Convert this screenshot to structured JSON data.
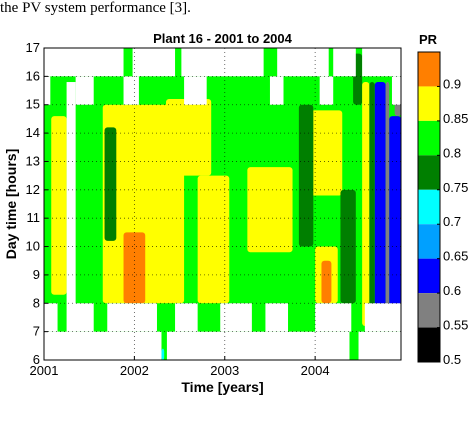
{
  "doc_text_top": "the PV system performance [3].",
  "chart_data": {
    "type": "heatmap",
    "title": "Plant 16 - 2001 to 2004",
    "xlabel": "Time  [years]",
    "ylabel": "Day time  [hours]",
    "xlim": [
      2001.0,
      2004.95
    ],
    "ylim": [
      6,
      17
    ],
    "xticks": [
      "2001",
      "2002",
      "2003",
      "2004"
    ],
    "yticks": [
      "6",
      "7",
      "8",
      "9",
      "10",
      "11",
      "12",
      "13",
      "14",
      "15",
      "16",
      "17"
    ],
    "grid": "dotted",
    "colorbar": {
      "title": "PR",
      "ticks": [
        "0.9",
        "0.85",
        "0.8",
        "0.75",
        "0.7",
        "0.65",
        "0.6",
        "0.55",
        "0.5"
      ],
      "levels": [
        0.5,
        0.55,
        0.6,
        0.65,
        0.7,
        0.75,
        0.8,
        0.85,
        0.9,
        0.95
      ],
      "colors": [
        "#000000",
        "#808080",
        "#0000ff",
        "#00a0ff",
        "#00ffff",
        "#007f00",
        "#00ff00",
        "#ffff00",
        "#ff7f00"
      ]
    },
    "regions": [
      {
        "value": 0.8,
        "x": [
          2001.0,
          2004.95
        ],
        "y": [
          6,
          17
        ]
      },
      {
        "value": 0.85,
        "x": [
          2001.08,
          2001.25
        ],
        "y": [
          8.3,
          14.6
        ]
      },
      {
        "value": 0.85,
        "x": [
          2001.65,
          2002.55
        ],
        "y": [
          8.0,
          15.0
        ]
      },
      {
        "value": 0.85,
        "x": [
          2002.7,
          2003.05
        ],
        "y": [
          8.0,
          12.5
        ]
      },
      {
        "value": 0.85,
        "x": [
          2002.35,
          2002.85
        ],
        "y": [
          12.5,
          15.2
        ]
      },
      {
        "value": 0.85,
        "x": [
          2003.25,
          2003.75
        ],
        "y": [
          9.8,
          12.8
        ]
      },
      {
        "value": 0.85,
        "x": [
          2003.9,
          2004.3
        ],
        "y": [
          11.8,
          14.8
        ]
      },
      {
        "value": 0.85,
        "x": [
          2004.0,
          2004.25
        ],
        "y": [
          8.0,
          10.0
        ]
      },
      {
        "value": 0.9,
        "x": [
          2001.88,
          2002.12
        ],
        "y": [
          8.0,
          10.5
        ]
      },
      {
        "value": 0.9,
        "x": [
          2004.07,
          2004.18
        ],
        "y": [
          8.0,
          9.5
        ]
      },
      {
        "value": 0.75,
        "x": [
          2001.67,
          2001.8
        ],
        "y": [
          10.2,
          14.2
        ]
      },
      {
        "value": 0.75,
        "x": [
          2003.82,
          2003.98
        ],
        "y": [
          10.0,
          15.0
        ]
      },
      {
        "value": 0.75,
        "x": [
          2004.28,
          2004.45
        ],
        "y": [
          8.0,
          12.0
        ]
      },
      {
        "value": 0.75,
        "x": [
          2004.42,
          2004.52
        ],
        "y": [
          15.0,
          16.8
        ]
      },
      {
        "value": 0.85,
        "x": [
          2004.52,
          2004.6
        ],
        "y": [
          7.2,
          15.8
        ]
      },
      {
        "value": 0.75,
        "x": [
          2004.6,
          2004.66
        ],
        "y": [
          7.2,
          15.8
        ]
      },
      {
        "value": 0.6,
        "x": [
          2004.66,
          2004.78
        ],
        "y": [
          7.2,
          15.8
        ]
      },
      {
        "value": 0.55,
        "x": [
          2004.78,
          2004.82
        ],
        "y": [
          7.2,
          15.8
        ]
      },
      {
        "value": 0.6,
        "x": [
          2004.82,
          2004.95
        ],
        "y": [
          7.2,
          14.6
        ]
      },
      {
        "value": 0.55,
        "x": [
          2004.88,
          2004.95
        ],
        "y": [
          14.6,
          15.2
        ]
      },
      {
        "value": 0.7,
        "x": [
          2002.3,
          2002.33
        ],
        "y": [
          6.0,
          6.4
        ]
      }
    ],
    "nodata": [
      {
        "x": [
          2001.0,
          2004.95
        ],
        "y": [
          16.0,
          17.0
        ]
      },
      {
        "x": [
          2001.0,
          2001.07
        ],
        "y": [
          15.0,
          17.0
        ]
      },
      {
        "x": [
          2001.0,
          2004.95
        ],
        "y": [
          6.0,
          7.0
        ]
      },
      {
        "x": [
          2001.0,
          2004.95
        ],
        "y": [
          7.0,
          8.0
        ]
      },
      {
        "x": [
          2004.95,
          2004.95
        ],
        "y": [
          6.0,
          6.0
        ]
      }
    ]
  },
  "doc_text_bottom": "... ... ... ... ... ... ... ... ... ... ... ... ... ..."
}
